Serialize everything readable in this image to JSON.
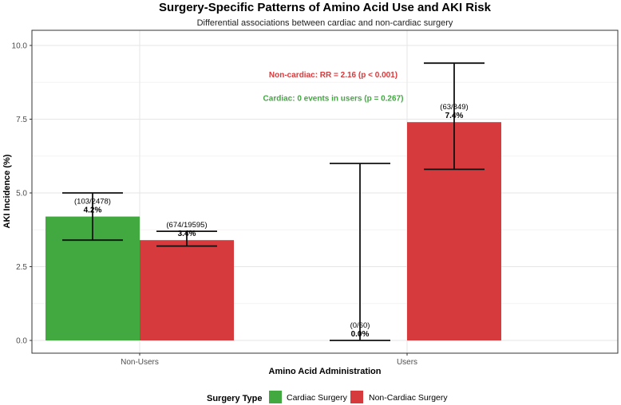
{
  "chart_data": {
    "type": "bar",
    "title": "Surgery-Specific Patterns of Amino Acid Use and AKI Risk",
    "subtitle": "Differential associations between cardiac and non-cardiac surgery",
    "xlabel": "Amino Acid Administration",
    "ylabel": "AKI Incidence (%)",
    "ylim": [
      0,
      10.5
    ],
    "yticks": [
      "0.0",
      "2.5",
      "5.0",
      "7.5",
      "10.0"
    ],
    "ytick_values": [
      0,
      2.5,
      5,
      7.5,
      10
    ],
    "categories": [
      "Non-Users",
      "Users"
    ],
    "series": [
      {
        "name": "Cardiac Surgery",
        "color": "#41a940",
        "values": [
          4.2,
          0.0
        ],
        "ci_low": [
          3.4,
          0.0
        ],
        "ci_high": [
          5.0,
          6.0
        ],
        "count_labels": [
          "(103/2478)",
          "(0/60)"
        ],
        "pct_labels": [
          "4.2%",
          "0.0%"
        ]
      },
      {
        "name": "Non-Cardiac Surgery",
        "color": "#d63a3c",
        "values": [
          3.4,
          7.4
        ],
        "ci_low": [
          3.2,
          5.8
        ],
        "ci_high": [
          3.7,
          9.4
        ],
        "count_labels": [
          "(674/19595)",
          "(63/849)"
        ],
        "pct_labels": [
          "3.4%",
          "7.4%"
        ]
      }
    ],
    "annotations": [
      {
        "text": "Non-cardiac: RR = 2.16 (p < 0.001)",
        "color": "#d63a3c",
        "x": "Users-center",
        "y": 9.0
      },
      {
        "text": "Cardiac: 0 events in users (p = 0.267)",
        "color": "#41a940",
        "x": "Users-center",
        "y": 8.2
      }
    ],
    "grid": true,
    "legend": {
      "title": "Surgery Type",
      "position": "bottom",
      "entries": [
        "Cardiac Surgery",
        "Non-Cardiac Surgery"
      ]
    }
  }
}
